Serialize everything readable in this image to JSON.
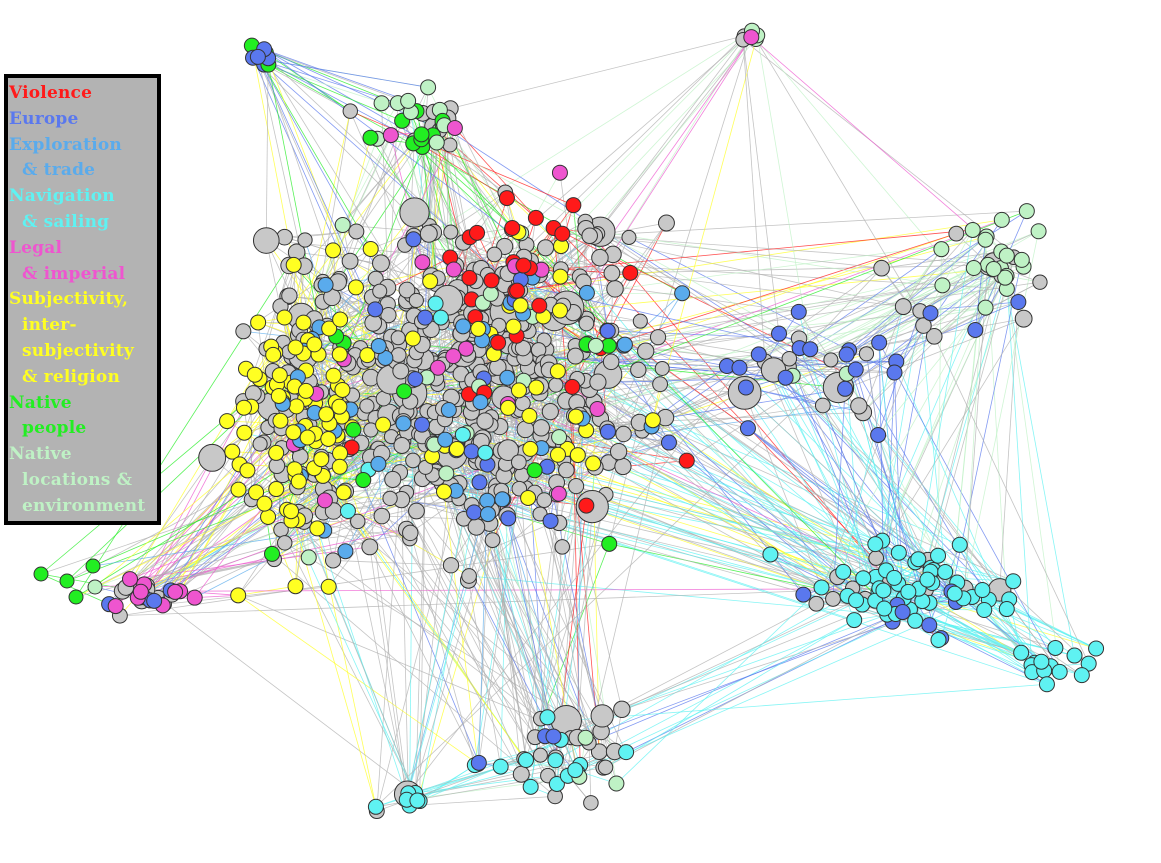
{
  "legend": {
    "entries": [
      {
        "key": "violence",
        "color": "#ff1a1a",
        "lines": [
          "Violence"
        ]
      },
      {
        "key": "europe",
        "color": "#5a78ee",
        "lines": [
          "Europe"
        ]
      },
      {
        "key": "exploration",
        "color": "#5aabec",
        "lines": [
          "Exploration",
          "& trade"
        ]
      },
      {
        "key": "navigation",
        "color": "#5ff2f2",
        "lines": [
          "Navigation",
          "& sailing"
        ]
      },
      {
        "key": "legal",
        "color": "#ee55cf",
        "lines": [
          "Legal",
          "& imperial"
        ]
      },
      {
        "key": "subjectivity",
        "color": "#ffff22",
        "lines": [
          "Subjectivity,",
          "inter-",
          "subjectivity",
          "& religion"
        ]
      },
      {
        "key": "native_people",
        "color": "#22ee22",
        "lines": [
          "Native",
          "people"
        ]
      },
      {
        "key": "native_locations",
        "color": "#bff2c5",
        "lines": [
          "Native",
          "locations &",
          "environment"
        ]
      }
    ]
  },
  "colors": {
    "other_node": "#c8c8c8",
    "edge_default": "#b0b0b0",
    "node_stroke": "#333333"
  }
}
